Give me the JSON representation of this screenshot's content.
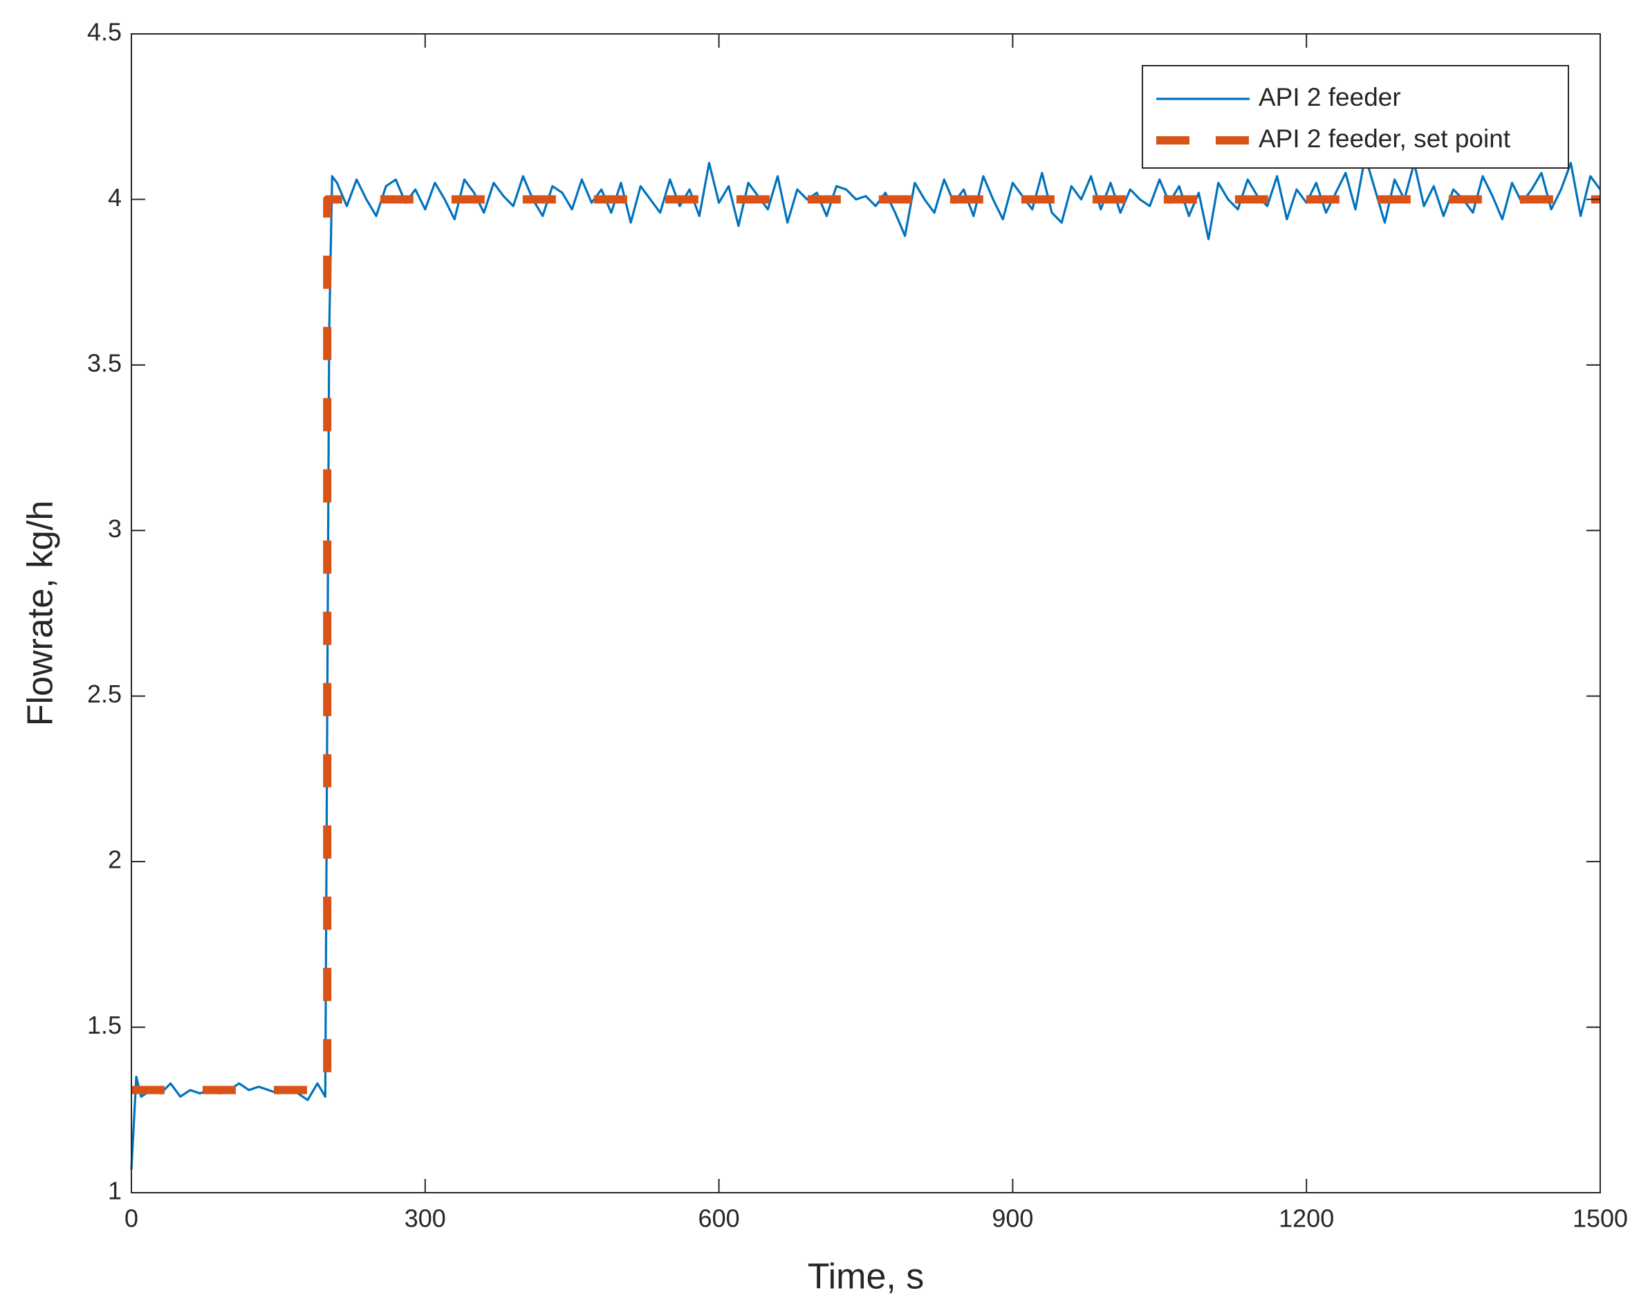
{
  "chart_data": {
    "type": "line",
    "xlabel": "Time, s",
    "ylabel": "Flowrate, kg/h",
    "xlim": [
      0,
      1500
    ],
    "xticks": [
      0,
      300,
      600,
      900,
      1200,
      1500
    ],
    "ylim": [
      1,
      4.5
    ],
    "yticks": [
      1,
      1.5,
      2,
      2.5,
      3,
      3.5,
      4,
      4.5
    ],
    "legend": "upper right",
    "series": [
      {
        "name": "API 2 feeder",
        "color": "#0072bd",
        "line_style": "solid",
        "x": [
          0,
          5,
          10,
          20,
          30,
          40,
          50,
          60,
          70,
          80,
          90,
          100,
          110,
          120,
          130,
          140,
          150,
          160,
          170,
          180,
          190,
          198,
          202,
          205,
          210,
          220,
          230,
          240,
          250,
          260,
          270,
          280,
          290,
          300,
          310,
          320,
          330,
          340,
          350,
          360,
          370,
          380,
          390,
          400,
          410,
          420,
          430,
          440,
          450,
          460,
          470,
          480,
          490,
          500,
          510,
          520,
          530,
          540,
          550,
          560,
          570,
          580,
          590,
          600,
          610,
          620,
          630,
          640,
          650,
          660,
          670,
          680,
          690,
          700,
          710,
          720,
          730,
          740,
          750,
          760,
          770,
          780,
          790,
          800,
          810,
          820,
          830,
          840,
          850,
          860,
          870,
          880,
          890,
          900,
          910,
          920,
          930,
          940,
          950,
          960,
          970,
          980,
          990,
          1000,
          1010,
          1020,
          1030,
          1040,
          1050,
          1060,
          1070,
          1080,
          1090,
          1100,
          1110,
          1120,
          1130,
          1140,
          1150,
          1160,
          1170,
          1180,
          1190,
          1200,
          1210,
          1220,
          1230,
          1240,
          1250,
          1260,
          1270,
          1280,
          1290,
          1300,
          1310,
          1320,
          1330,
          1340,
          1350,
          1360,
          1370,
          1380,
          1390,
          1400,
          1410,
          1420,
          1430,
          1440,
          1450,
          1460,
          1470,
          1480,
          1490,
          1500
        ],
        "values": [
          1.07,
          1.35,
          1.29,
          1.31,
          1.3,
          1.33,
          1.29,
          1.31,
          1.3,
          1.31,
          1.3,
          1.31,
          1.33,
          1.31,
          1.32,
          1.31,
          1.3,
          1.31,
          1.3,
          1.28,
          1.33,
          1.29,
          3.6,
          4.07,
          4.05,
          3.98,
          4.06,
          4.0,
          3.95,
          4.04,
          4.06,
          3.99,
          4.03,
          3.97,
          4.05,
          4.0,
          3.94,
          4.06,
          4.02,
          3.96,
          4.05,
          4.01,
          3.98,
          4.07,
          4.0,
          3.95,
          4.04,
          4.02,
          3.97,
          4.06,
          3.99,
          4.03,
          3.96,
          4.05,
          3.93,
          4.04,
          4.0,
          3.96,
          4.06,
          3.98,
          4.03,
          3.95,
          4.11,
          3.99,
          4.04,
          3.92,
          4.05,
          4.01,
          3.97,
          4.07,
          3.93,
          4.03,
          4.0,
          4.02,
          3.95,
          4.04,
          4.03,
          4.0,
          4.01,
          3.98,
          4.02,
          3.96,
          3.89,
          4.05,
          4.0,
          3.96,
          4.06,
          3.99,
          4.03,
          3.95,
          4.07,
          4.0,
          3.94,
          4.05,
          4.01,
          3.97,
          4.08,
          3.96,
          3.93,
          4.04,
          4.0,
          4.07,
          3.97,
          4.05,
          3.96,
          4.03,
          4.0,
          3.98,
          4.06,
          3.99,
          4.04,
          3.95,
          4.02,
          3.88,
          4.05,
          4.0,
          3.97,
          4.06,
          4.01,
          3.98,
          4.07,
          3.94,
          4.03,
          3.99,
          4.05,
          3.96,
          4.02,
          4.08,
          3.97,
          4.13,
          4.03,
          3.93,
          4.06,
          4.0,
          4.11,
          3.98,
          4.04,
          3.95,
          4.03,
          4.0,
          3.96,
          4.07,
          4.01,
          3.94,
          4.05,
          3.99,
          4.03,
          4.08,
          3.97,
          4.03,
          4.11,
          3.95,
          4.07,
          4.03
        ]
      },
      {
        "name": "API 2 feeder, set point",
        "color": "#d95319",
        "line_style": "dashed",
        "x": [
          0,
          200,
          200,
          1500
        ],
        "values": [
          1.31,
          1.31,
          4,
          4
        ]
      }
    ]
  }
}
